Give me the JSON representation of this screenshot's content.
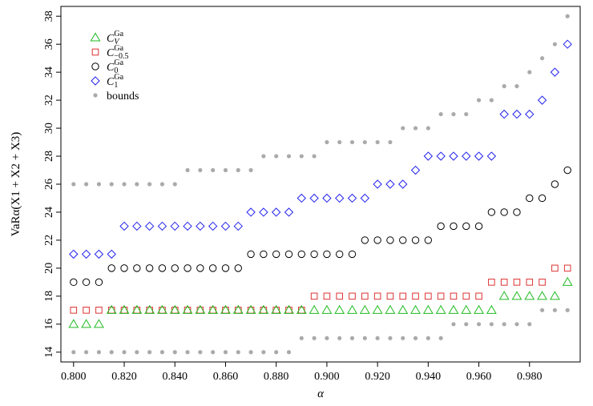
{
  "chart_data": {
    "type": "scatter",
    "title": "",
    "xlabel": "α",
    "ylabel": "VaRα(X1 + X2 + X3)",
    "xlim": [
      0.795,
      1.0
    ],
    "ylim": [
      13.3,
      38.7
    ],
    "x_ticks": [
      0.8,
      0.82,
      0.84,
      0.86,
      0.88,
      0.9,
      0.92,
      0.94,
      0.96,
      0.98
    ],
    "x_tick_labels": [
      "0.800",
      "0.820",
      "0.840",
      "0.860",
      "0.880",
      "0.900",
      "0.920",
      "0.940",
      "0.960",
      "0.980"
    ],
    "y_ticks": [
      14,
      16,
      18,
      20,
      22,
      24,
      26,
      28,
      30,
      32,
      34,
      36,
      38
    ],
    "y_tick_labels": [
      "14",
      "16",
      "18",
      "20",
      "22",
      "24",
      "26",
      "28",
      "30",
      "32",
      "34",
      "36",
      "38"
    ],
    "grid": false,
    "legend_position": "top-left",
    "x": [
      0.8,
      0.805,
      0.81,
      0.815,
      0.82,
      0.825,
      0.83,
      0.835,
      0.84,
      0.845,
      0.85,
      0.855,
      0.86,
      0.865,
      0.87,
      0.875,
      0.88,
      0.885,
      0.89,
      0.895,
      0.9,
      0.905,
      0.91,
      0.915,
      0.92,
      0.925,
      0.93,
      0.935,
      0.94,
      0.945,
      0.95,
      0.955,
      0.96,
      0.965,
      0.97,
      0.975,
      0.98,
      0.985,
      0.99,
      0.995
    ],
    "series": [
      {
        "name": "C_V^Ga",
        "label_main": "C",
        "label_sub": "V",
        "label_sup": "Ga",
        "marker": "triangle",
        "color": "#22bb22",
        "values": [
          16,
          16,
          16,
          17,
          17,
          17,
          17,
          17,
          17,
          17,
          17,
          17,
          17,
          17,
          17,
          17,
          17,
          17,
          17,
          17,
          17,
          17,
          17,
          17,
          17,
          17,
          17,
          17,
          17,
          17,
          17,
          17,
          17,
          17,
          18,
          18,
          18,
          18,
          18,
          19
        ]
      },
      {
        "name": "C_-0.5^Ga",
        "label_main": "C",
        "label_sub": "−0.5",
        "label_sup": "Ga",
        "marker": "square",
        "color": "#dd3333",
        "values": [
          17,
          17,
          17,
          17,
          17,
          17,
          17,
          17,
          17,
          17,
          17,
          17,
          17,
          17,
          17,
          17,
          17,
          17,
          17,
          18,
          18,
          18,
          18,
          18,
          18,
          18,
          18,
          18,
          18,
          18,
          18,
          18,
          18,
          19,
          19,
          19,
          19,
          19,
          20,
          20
        ]
      },
      {
        "name": "C_0^Ga",
        "label_main": "C",
        "label_sub": "0",
        "label_sup": "Ga",
        "marker": "circle",
        "color": "#000000",
        "values": [
          19,
          19,
          19,
          20,
          20,
          20,
          20,
          20,
          20,
          20,
          20,
          20,
          20,
          20,
          21,
          21,
          21,
          21,
          21,
          21,
          21,
          21,
          21,
          22,
          22,
          22,
          22,
          22,
          22,
          23,
          23,
          23,
          23,
          24,
          24,
          24,
          25,
          25,
          26,
          27
        ]
      },
      {
        "name": "C_1^Ga",
        "label_main": "C",
        "label_sub": "1",
        "label_sup": "Ga",
        "marker": "diamond",
        "color": "#2222ee",
        "values": [
          21,
          21,
          21,
          21,
          23,
          23,
          23,
          23,
          23,
          23,
          23,
          23,
          23,
          23,
          24,
          24,
          24,
          24,
          25,
          25,
          25,
          25,
          25,
          25,
          26,
          26,
          26,
          27,
          28,
          28,
          28,
          28,
          28,
          28,
          31,
          31,
          31,
          32,
          34,
          36
        ]
      },
      {
        "name": "bounds",
        "label_main": "bounds",
        "marker": "dot",
        "color": "#aaaaaa",
        "upper": [
          26,
          26,
          26,
          26,
          26,
          26,
          26,
          26,
          26,
          27,
          27,
          27,
          27,
          27,
          27,
          28,
          28,
          28,
          28,
          28,
          29,
          29,
          29,
          29,
          29,
          29,
          30,
          30,
          30,
          31,
          31,
          31,
          32,
          32,
          33,
          33,
          34,
          35,
          36,
          38
        ],
        "lower": [
          14,
          14,
          14,
          14,
          14,
          14,
          14,
          14,
          14,
          14,
          14,
          14,
          14,
          14,
          14,
          14,
          14,
          14,
          15,
          15,
          15,
          15,
          15,
          15,
          15,
          15,
          15,
          15,
          15,
          15,
          16,
          16,
          16,
          16,
          16,
          16,
          16,
          17,
          17,
          17
        ]
      }
    ]
  }
}
